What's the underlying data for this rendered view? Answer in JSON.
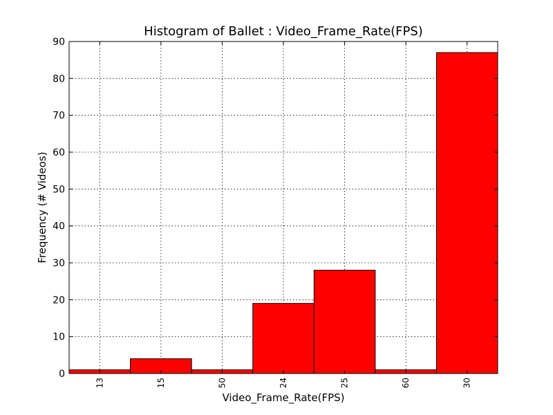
{
  "chart_data": {
    "type": "bar",
    "title": "Histogram of Ballet : Video_Frame_Rate(FPS)",
    "xlabel": "Video_Frame_Rate(FPS)",
    "ylabel": "Frequency (# Videos)",
    "categories": [
      "13",
      "15",
      "50",
      "24",
      "25",
      "60",
      "30"
    ],
    "values": [
      1,
      4,
      1,
      19,
      28,
      1,
      87
    ],
    "ylim": [
      0,
      90
    ],
    "yticks": [
      0,
      10,
      20,
      30,
      40,
      50,
      60,
      70,
      80,
      90
    ],
    "grid": true,
    "bar_color": "#ff0000",
    "edge_color": "#000000"
  }
}
